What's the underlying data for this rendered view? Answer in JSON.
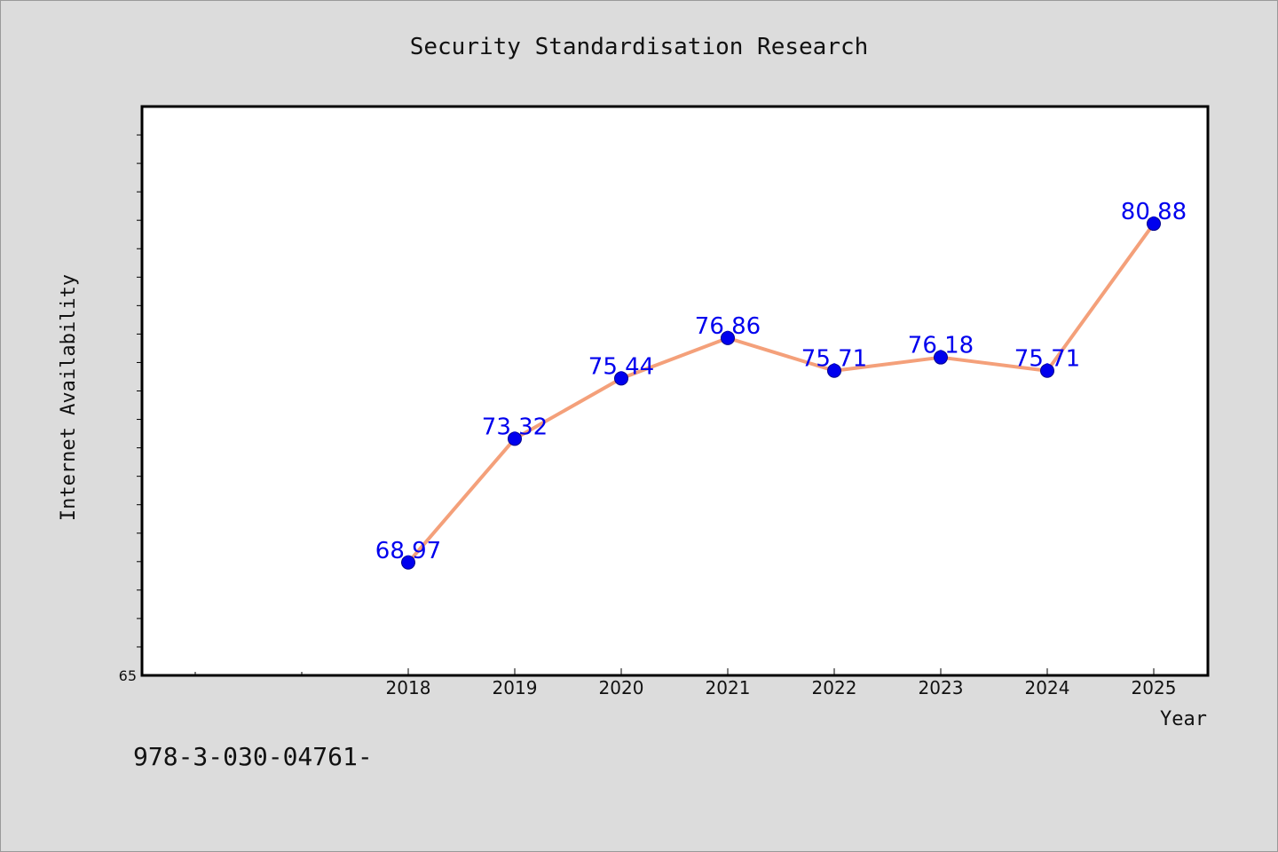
{
  "chart_data": {
    "type": "line",
    "title": "Security Standardisation Research",
    "xlabel": "Year",
    "ylabel": "Internet Availability",
    "categories": [
      "2018",
      "2019",
      "2020",
      "2021",
      "2022",
      "2023",
      "2024",
      "2025"
    ],
    "series": [
      {
        "values": [
          68.97,
          73.32,
          75.44,
          76.86,
          75.71,
          76.18,
          75.71,
          80.88
        ],
        "data_labels": [
          "68.97",
          "73.32",
          "75.44",
          "76.86",
          "75.71",
          "76.18",
          "75.71",
          "80.88"
        ]
      }
    ],
    "ylim": [
      65,
      85
    ],
    "y_tick_labels": [
      "65"
    ],
    "grid": false,
    "line_color": "#f4a07a",
    "marker_color": "#0000ee",
    "label_color": "#0000ee"
  },
  "footnote": "978-3-030-04761-"
}
